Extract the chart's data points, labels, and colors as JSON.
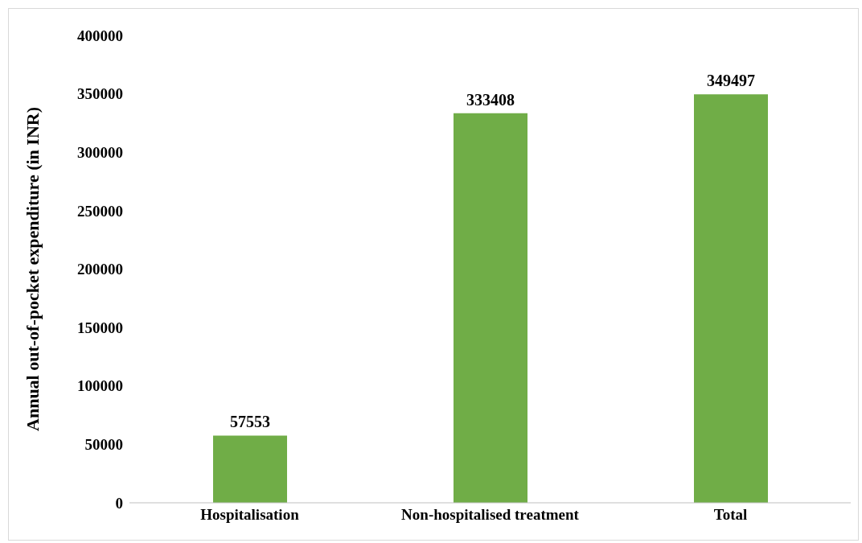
{
  "chart_data": {
    "type": "bar",
    "ylabel": "Annual out-of-pocket expenditure (in INR)",
    "categories": [
      "Hospitalisation",
      "Non-hospitalised treatment",
      "Total"
    ],
    "values": [
      57553,
      333408,
      349497
    ],
    "color": "#70ad47",
    "ylim": [
      0,
      400000
    ],
    "yticks": [
      0,
      50000,
      100000,
      150000,
      200000,
      250000,
      300000,
      350000,
      400000
    ],
    "grid": false,
    "data_labels": true
  }
}
